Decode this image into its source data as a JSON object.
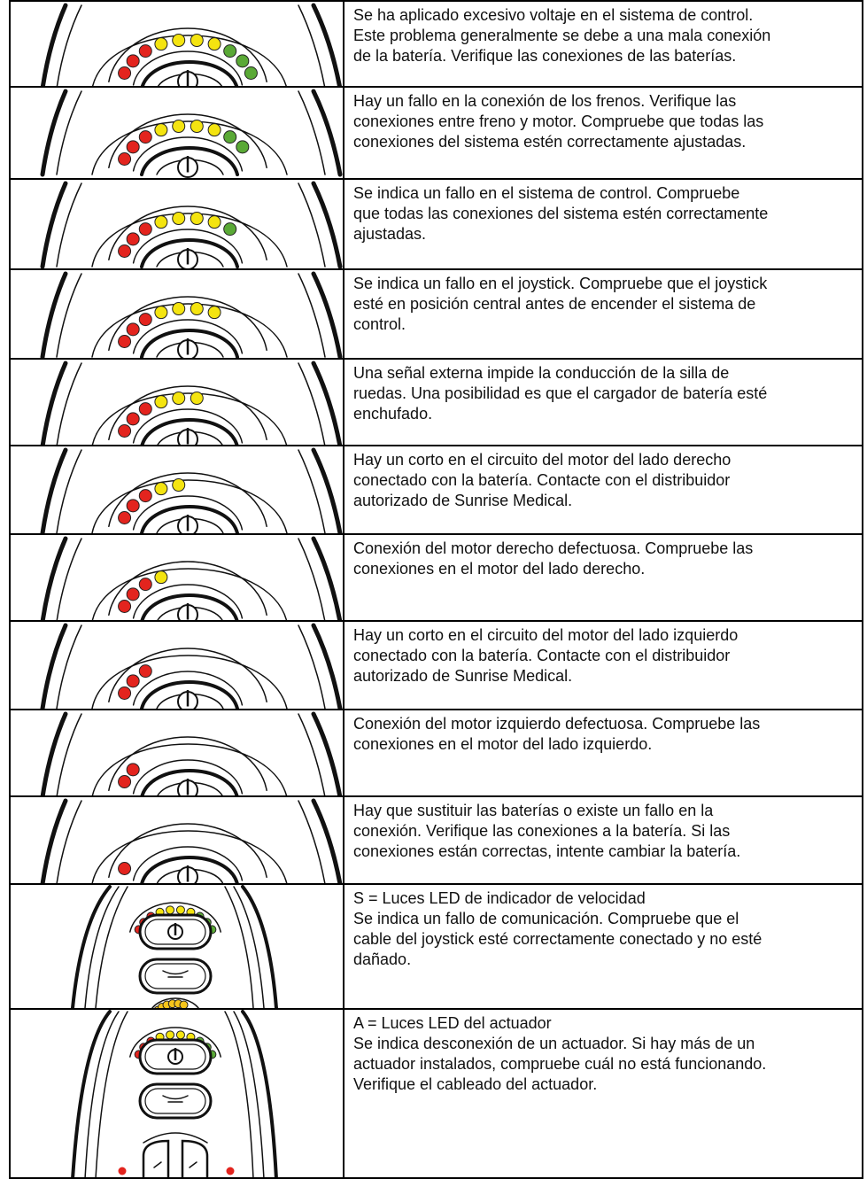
{
  "rows": [
    {
      "lines": [
        "Se ha aplicado excesivo voltaje en el sistema de control.",
        "Este problema generalmente se debe a una mala conexión",
        "de la batería. Verifique las conexiones de las baterías."
      ]
    },
    {
      "lines": [
        "Hay un fallo en la conexión de los frenos. Verifique las",
        "conexiones entre freno y motor. Compruebe que todas las",
        "conexiones del sistema estén correctamente ajustadas."
      ]
    },
    {
      "lines": [
        "Se indica un fallo en el sistema de control. Compruebe",
        "que todas las conexiones del sistema estén correctamente",
        "ajustadas."
      ]
    },
    {
      "lines": [
        "Se indica un fallo en el joystick. Compruebe que el joystick",
        "esté en posición central antes de encender el sistema de",
        "control."
      ]
    },
    {
      "lines": [
        "Una señal externa impide la conducción de la silla de",
        "ruedas. Una posibilidad es que el cargador de batería esté",
        "enchufado."
      ]
    },
    {
      "lines": [
        "Hay un corto en el circuito del motor del lado derecho",
        "conectado con la batería. Contacte con el distribuidor",
        "autorizado de Sunrise Medical."
      ]
    },
    {
      "lines": [
        "Conexión del motor derecho defectuosa. Compruebe las",
        "conexiones en el motor del lado derecho."
      ]
    },
    {
      "lines": [
        "Hay un corto en el circuito del motor del lado izquierdo",
        "conectado con la batería. Contacte con el distribuidor",
        "autorizado de Sunrise Medical."
      ]
    },
    {
      "lines": [
        "Conexión del motor izquierdo defectuosa. Compruebe las",
        "conexiones en el motor del lado izquierdo."
      ]
    },
    {
      "lines": [
        "Hay que sustituir las baterías o existe un fallo en la",
        "conexión. Verifique las conexiones a la batería. Si las",
        "conexiones están correctas, intente cambiar la batería."
      ]
    },
    {
      "lines": [
        "S = Luces LED de indicador de velocidad",
        "Se indica un fallo de comunicación. Compruebe que el",
        "cable del joystick esté correctamente conectado y no esté",
        "dañado."
      ]
    },
    {
      "lines": [
        "A = Luces LED del actuador",
        "Se indica desconexión de un actuador. Si hay más de un",
        "actuador instalados, compruebe cuál no está funcionando.",
        "Verifique el cableado del actuador."
      ]
    }
  ]
}
